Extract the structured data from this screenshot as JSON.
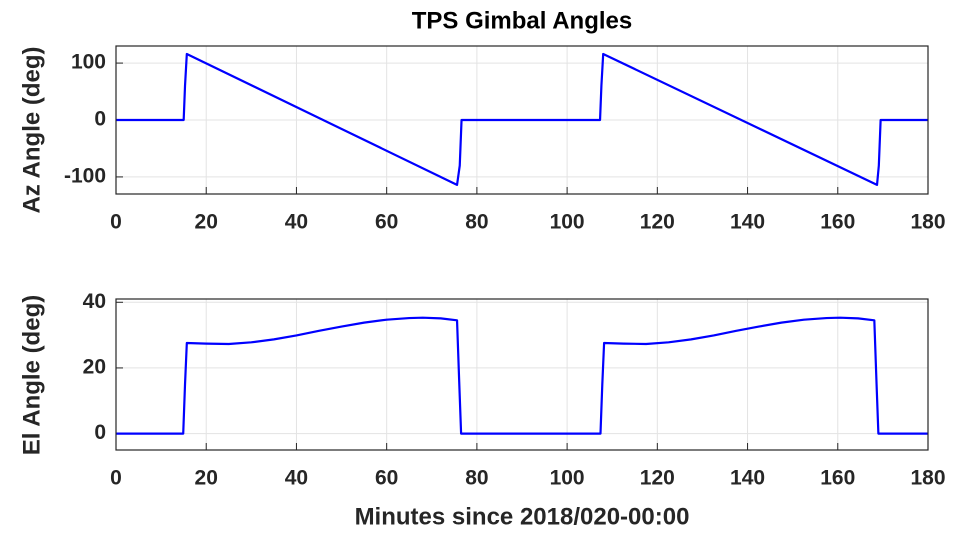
{
  "chart_data": [
    {
      "type": "line",
      "title": "TPS Gimbal Angles",
      "ylabel": "Az Angle (deg)",
      "color": "#0000ff",
      "grid": true,
      "x": [
        0,
        15,
        15.3,
        15.7,
        75.6,
        76.2,
        76.6,
        107.3,
        107.6,
        108,
        168.7,
        169.1,
        169.5,
        180
      ],
      "values": [
        0,
        0,
        60,
        116,
        -114,
        -80,
        0,
        0,
        60,
        116,
        -114,
        -80,
        0,
        0
      ],
      "xlim": [
        0,
        180
      ],
      "xticks": [
        0,
        20,
        40,
        60,
        80,
        100,
        120,
        140,
        160,
        180
      ],
      "ylim": [
        -130,
        130
      ],
      "yticks": [
        -100,
        0,
        100
      ]
    },
    {
      "type": "line",
      "xlabel": "Minutes since 2018/020-00:00",
      "ylabel": "El Angle (deg)",
      "color": "#0000ff",
      "grid": true,
      "x": [
        0,
        14.9,
        15.3,
        15.7,
        20,
        25,
        30,
        35,
        40,
        45,
        50,
        55,
        60,
        65,
        68,
        72,
        75.6,
        76.1,
        76.5,
        107.4,
        107.8,
        108.2,
        112.5,
        117.5,
        122.5,
        127.5,
        132.5,
        137.5,
        142.5,
        147.5,
        152.5,
        157.5,
        160.5,
        164.5,
        168.1,
        168.6,
        169.0,
        180
      ],
      "values": [
        0,
        0,
        15,
        27.6,
        27.4,
        27.3,
        27.8,
        28.7,
        29.9,
        31.3,
        32.6,
        33.8,
        34.7,
        35.2,
        35.3,
        35.1,
        34.5,
        15,
        0,
        0,
        15,
        27.6,
        27.4,
        27.3,
        27.8,
        28.7,
        29.9,
        31.3,
        32.6,
        33.8,
        34.7,
        35.2,
        35.3,
        35.1,
        34.5,
        15,
        0,
        0
      ],
      "xlim": [
        0,
        180
      ],
      "xticks": [
        0,
        20,
        40,
        60,
        80,
        100,
        120,
        140,
        160,
        180
      ],
      "ylim": [
        -5,
        41
      ],
      "yticks": [
        0,
        20,
        40
      ]
    }
  ]
}
